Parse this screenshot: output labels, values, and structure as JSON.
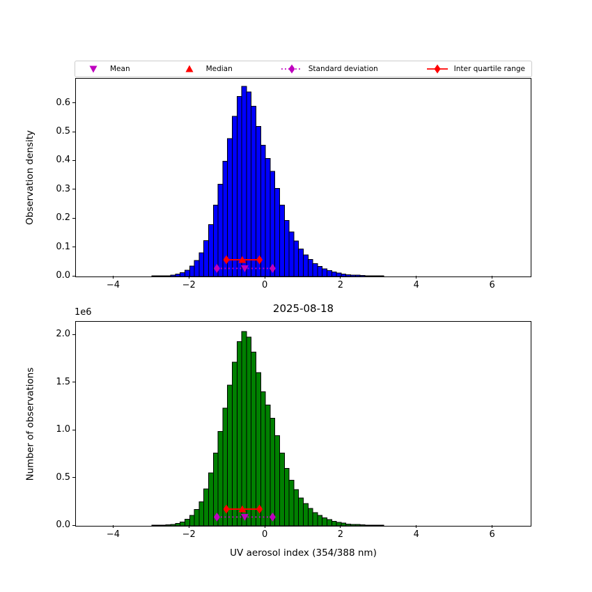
{
  "figure": {
    "legend": [
      {
        "label": "Mean",
        "marker": "triangle-down",
        "color": "#bf00bf",
        "line": "none"
      },
      {
        "label": "Median",
        "marker": "triangle-up",
        "color": "#ff0000",
        "line": "none"
      },
      {
        "label": "Standard deviation",
        "marker": "diamond",
        "color": "#bf00bf",
        "line": "dotted"
      },
      {
        "label": "Inter quartile range",
        "marker": "diamond",
        "color": "#ff0000",
        "line": "solid"
      }
    ]
  },
  "chart_data": [
    {
      "id": "top",
      "type": "bar",
      "ylabel": "Observation density",
      "bar_color": "#0000ff",
      "edge_color": "#000000",
      "bins": {
        "start": -3.0,
        "width": 0.125
      },
      "values": [
        0.0005,
        0.001,
        0.002,
        0.003,
        0.005,
        0.008,
        0.013,
        0.022,
        0.036,
        0.055,
        0.082,
        0.125,
        0.18,
        0.247,
        0.32,
        0.4,
        0.478,
        0.555,
        0.625,
        0.66,
        0.64,
        0.59,
        0.52,
        0.455,
        0.41,
        0.365,
        0.306,
        0.247,
        0.195,
        0.155,
        0.123,
        0.095,
        0.075,
        0.059,
        0.045,
        0.035,
        0.027,
        0.021,
        0.016,
        0.012,
        0.009,
        0.0066,
        0.005,
        0.0045,
        0.004,
        0.003,
        0.002,
        0.0015,
        0.001
      ],
      "xlim": [
        -5,
        7
      ],
      "ylim": [
        0,
        0.686
      ],
      "xticks": [
        -4,
        -2,
        0,
        2,
        4,
        6
      ],
      "xtick_labels": [
        "−4",
        "−2",
        "0",
        "2",
        "4",
        "6"
      ],
      "yticks": [
        0,
        0.1,
        0.2,
        0.3,
        0.4,
        0.5,
        0.6
      ],
      "ytick_labels": [
        "0.0",
        "0.1",
        "0.2",
        "0.3",
        "0.4",
        "0.5",
        "0.6"
      ],
      "markers": {
        "mean": {
          "x": -0.545,
          "y": 0.028,
          "color": "#bf00bf",
          "shape": "triangle-down"
        },
        "median": {
          "x": -0.61,
          "y": 0.058,
          "color": "#ff0000",
          "shape": "triangle-up"
        },
        "std": {
          "x1": -1.28,
          "x2": 0.19,
          "y": 0.028,
          "color": "#bf00bf",
          "line": "dotted"
        },
        "iqr": {
          "x1": -1.03,
          "x2": -0.155,
          "y": 0.058,
          "color": "#ff0000",
          "line": "solid"
        }
      }
    },
    {
      "id": "bottom",
      "type": "bar",
      "title": "2025-08-18",
      "ylabel": "Number of observations",
      "xlabel": "UV aerosol index (354/388 nm)",
      "offset_text": "1e6",
      "bar_color": "#008000",
      "edge_color": "#000000",
      "bins": {
        "start": -3.0,
        "width": 0.125
      },
      "values": [
        1500,
        3100,
        6200,
        9300,
        15500,
        24700,
        40200,
        68000,
        111000,
        170000,
        253000,
        386000,
        556000,
        763000,
        989000,
        1236000,
        1477000,
        1715000,
        1931000,
        2039000,
        1978000,
        1823000,
        1607000,
        1406000,
        1267000,
        1128000,
        946000,
        763000,
        603000,
        479000,
        380000,
        294000,
        232000,
        182000,
        139000,
        108000,
        83000,
        65000,
        49000,
        37000,
        28000,
        20000,
        15000,
        14000,
        12000,
        9000,
        6000,
        4600,
        3100
      ],
      "xlim": [
        -5,
        7
      ],
      "ylim": [
        0,
        2140000
      ],
      "xticks": [
        -4,
        -2,
        0,
        2,
        4,
        6
      ],
      "xtick_labels": [
        "−4",
        "−2",
        "0",
        "2",
        "4",
        "6"
      ],
      "yticks": [
        0,
        500000,
        1000000,
        1500000,
        2000000
      ],
      "ytick_labels": [
        "0.0",
        "0.5",
        "1.0",
        "1.5",
        "2.0"
      ],
      "markers": {
        "mean": {
          "x": -0.545,
          "y": 92000,
          "color": "#bf00bf",
          "shape": "triangle-down"
        },
        "median": {
          "x": -0.61,
          "y": 175000,
          "color": "#ff0000",
          "shape": "triangle-up"
        },
        "std": {
          "x1": -1.28,
          "x2": 0.19,
          "y": 92000,
          "color": "#bf00bf",
          "line": "dotted"
        },
        "iqr": {
          "x1": -1.03,
          "x2": -0.155,
          "y": 175000,
          "color": "#ff0000",
          "line": "solid"
        }
      }
    }
  ]
}
